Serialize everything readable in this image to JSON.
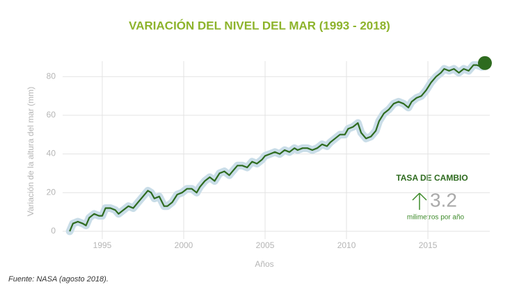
{
  "chart_data": {
    "type": "line",
    "title": "VARIACIÓN DEL NIVEL DEL MAR (1993 - 2018)",
    "x_label": "Años",
    "y_label": "Variación de la altura del mar (mm)",
    "source": "Fuente: NASA (agosto 2018).",
    "annotation": {
      "title": "TASA DE CAMBIO",
      "value": 3.2,
      "unit": "milimetros por año"
    },
    "xlim": [
      1992.5,
      2018.8
    ],
    "ylim": [
      -4,
      88
    ],
    "xticks": [
      1995,
      2000,
      2005,
      2010,
      2015
    ],
    "yticks": [
      0,
      20,
      40,
      60,
      80
    ],
    "grid": true,
    "x": [
      1993.0,
      1993.2,
      1993.5,
      1993.8,
      1994.0,
      1994.2,
      1994.5,
      1994.8,
      1995.0,
      1995.2,
      1995.5,
      1995.8,
      1996.0,
      1996.3,
      1996.6,
      1996.9,
      1997.2,
      1997.5,
      1997.8,
      1998.0,
      1998.2,
      1998.5,
      1998.8,
      1999.0,
      1999.3,
      1999.6,
      1999.9,
      2000.2,
      2000.5,
      2000.8,
      2001.0,
      2001.3,
      2001.6,
      2001.9,
      2002.2,
      2002.5,
      2002.8,
      2003.0,
      2003.3,
      2003.6,
      2003.9,
      2004.2,
      2004.5,
      2004.8,
      2005.0,
      2005.3,
      2005.6,
      2005.9,
      2006.2,
      2006.5,
      2006.8,
      2007.0,
      2007.3,
      2007.6,
      2007.9,
      2008.2,
      2008.5,
      2008.8,
      2009.0,
      2009.3,
      2009.6,
      2009.9,
      2010.1,
      2010.4,
      2010.7,
      2010.9,
      2011.2,
      2011.5,
      2011.8,
      2012.0,
      2012.3,
      2012.6,
      2012.9,
      2013.2,
      2013.5,
      2013.8,
      2014.0,
      2014.3,
      2014.6,
      2014.9,
      2015.2,
      2015.5,
      2015.8,
      2016.0,
      2016.3,
      2016.6,
      2016.9,
      2017.2,
      2017.5,
      2017.8,
      2018.0,
      2018.3,
      2018.5
    ],
    "series": [
      {
        "name": "Nivel del mar",
        "color": "#2e6b1f",
        "values": [
          0,
          4,
          5,
          4,
          3,
          7,
          9,
          8,
          8,
          12,
          12,
          11,
          9,
          11,
          13,
          12,
          15,
          18,
          21,
          20,
          17,
          18,
          13,
          13,
          15,
          19,
          20,
          22,
          22,
          20,
          23,
          26,
          28,
          26,
          30,
          31,
          29,
          31,
          34,
          34,
          33,
          36,
          35,
          37,
          39,
          40,
          41,
          40,
          42,
          41,
          43,
          42,
          43,
          43,
          42,
          43,
          45,
          44,
          46,
          48,
          50,
          50,
          53,
          54,
          56,
          51,
          48,
          49,
          52,
          57,
          61,
          63,
          66,
          67,
          66,
          64,
          67,
          69,
          70,
          73,
          77,
          80,
          82,
          84,
          83,
          84,
          82,
          84,
          83,
          86,
          86,
          85,
          87
        ]
      }
    ]
  }
}
